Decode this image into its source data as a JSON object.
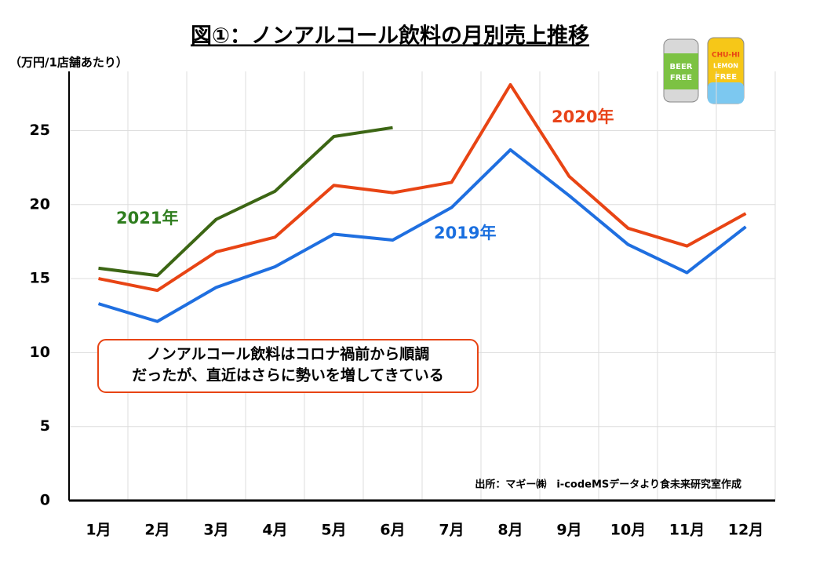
{
  "chart_data": {
    "type": "line",
    "title": "図①：ノンアルコール飲料の月別売上推移",
    "y_label": "（万円/1店舗あたり）",
    "categories": [
      "1月",
      "2月",
      "3月",
      "4月",
      "5月",
      "6月",
      "7月",
      "8月",
      "9月",
      "10月",
      "11月",
      "12月"
    ],
    "series": [
      {
        "name": "2019年",
        "color": "#1f6fe0",
        "values": [
          13.3,
          12.1,
          14.4,
          15.8,
          18.0,
          17.6,
          19.8,
          23.7,
          20.6,
          17.3,
          15.4,
          18.5
        ]
      },
      {
        "name": "2020年",
        "color": "#e84414",
        "values": [
          15.0,
          14.2,
          16.8,
          17.8,
          21.3,
          20.8,
          21.5,
          28.1,
          21.9,
          18.4,
          17.2,
          19.4
        ]
      },
      {
        "name": "2021年",
        "color": "#3c6614",
        "values": [
          15.7,
          15.2,
          19.0,
          20.9,
          24.6,
          25.2,
          null,
          null,
          null,
          null,
          null,
          null
        ]
      }
    ],
    "ylim": [
      0,
      29
    ],
    "yticks": [
      0,
      5,
      10,
      15,
      20,
      25
    ],
    "grid": true,
    "annotation": [
      "ノンアルコール飲料はコロナ禍前から順調",
      "だったが、直近はさらに勢いを増してきている"
    ],
    "source": "出所：マギー㈱　i-codeMSデータより食未来研究室作成",
    "can_labels": [
      "BEER",
      "FREE",
      "CHU-HI",
      "LEMON",
      "FREE"
    ]
  }
}
